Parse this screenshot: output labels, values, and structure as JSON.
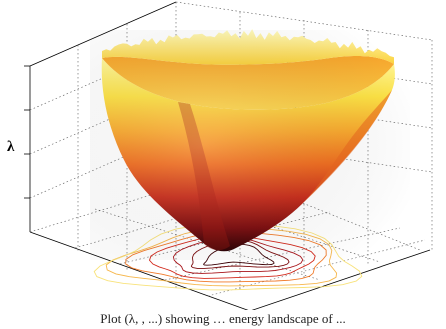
{
  "caption": "Plot (λ, , ...) showing … energy landscape of ...",
  "chart_data": {
    "type": "surface",
    "zlabel": "λ",
    "grid": true,
    "colormap": [
      "#3a0005",
      "#8b0a10",
      "#d2281b",
      "#f26a1c",
      "#f9a62a",
      "#fde041",
      "#fffcb4"
    ],
    "projection_contours": true
  }
}
